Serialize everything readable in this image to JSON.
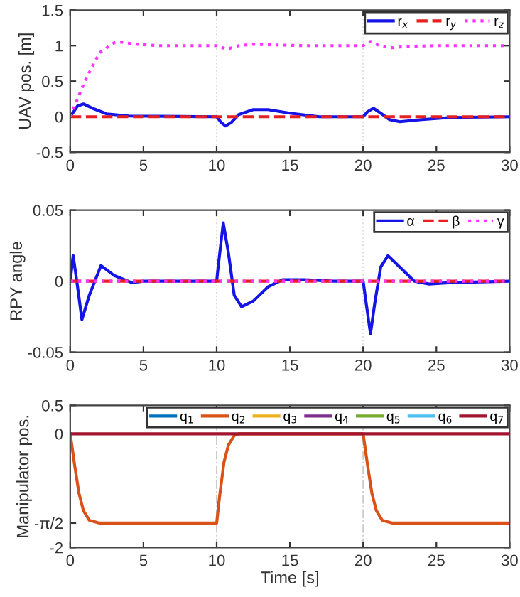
{
  "chart_data": [
    {
      "type": "line",
      "ylabel": "UAV pos. [m]",
      "xlim": [
        0,
        30
      ],
      "xticks": [
        0,
        5,
        10,
        15,
        20,
        25,
        30
      ],
      "ylim": [
        -0.5,
        1.5
      ],
      "yticks": [
        -0.5,
        0,
        0.5,
        1,
        1.5
      ],
      "legend": "top right",
      "grid": false,
      "ref_lines": [
        {
          "axis": "x",
          "value": 10,
          "color": "#d9d9d9",
          "line_style": "dotted"
        },
        {
          "axis": "x",
          "value": 20,
          "color": "#d9d9d9",
          "line_style": "dotted"
        }
      ],
      "series": [
        {
          "name": "r$_{x}$",
          "color": "#1414e6",
          "line_style": "solid",
          "x": [
            0,
            0.5,
            0.9,
            1.5,
            2.5,
            4,
            10,
            10.3,
            10.6,
            11,
            11.5,
            12.5,
            13.5,
            15,
            17,
            20,
            20.3,
            20.7,
            21.2,
            21.8,
            22.5,
            24,
            26,
            30
          ],
          "values": [
            0,
            0.15,
            0.18,
            0.12,
            0.04,
            0.01,
            0,
            -0.08,
            -0.13,
            -0.08,
            0.03,
            0.1,
            0.1,
            0.05,
            0,
            0,
            0.07,
            0.12,
            0.05,
            -0.04,
            -0.07,
            -0.04,
            -0.01,
            0
          ]
        },
        {
          "name": "r$_{y}$",
          "color": "#e62020",
          "line_style": "dashed",
          "x": [
            0,
            30
          ],
          "values": [
            0,
            0
          ]
        },
        {
          "name": "r$_{z}$",
          "color": "#ff33ff",
          "line_style": "dotted",
          "x": [
            0,
            1,
            2,
            3,
            3.5,
            4.5,
            6,
            10,
            10.7,
            11.5,
            12.5,
            14,
            16,
            20,
            20.5,
            21,
            22,
            23,
            25,
            30
          ],
          "values": [
            0,
            0.5,
            0.9,
            1.04,
            1.05,
            1.02,
            1.0,
            1.0,
            0.95,
            1.0,
            1.02,
            1.01,
            1.0,
            1.0,
            1.06,
            1.01,
            0.97,
            0.99,
            1.0,
            1.0
          ]
        }
      ]
    },
    {
      "type": "line",
      "ylabel": "RPY angle",
      "xlim": [
        0,
        30
      ],
      "xticks": [
        0,
        5,
        10,
        15,
        20,
        25,
        30
      ],
      "ylim": [
        -0.05,
        0.05
      ],
      "yticks": [
        -0.05,
        0,
        0.05
      ],
      "legend": "top right",
      "grid": false,
      "ref_lines": [
        {
          "axis": "x",
          "value": 10,
          "color": "#d9d9d9",
          "line_style": "dotted"
        },
        {
          "axis": "x",
          "value": 20,
          "color": "#d9d9d9",
          "line_style": "dotted"
        }
      ],
      "series": [
        {
          "name": "α",
          "color": "#1414e6",
          "line_style": "solid",
          "x": [
            0,
            0.2,
            0.45,
            0.8,
            1.3,
            2.1,
            3,
            4.2,
            5,
            10,
            10.1,
            10.45,
            10.8,
            11.2,
            11.7,
            12.5,
            13.5,
            14.5,
            16,
            18,
            20,
            20.2,
            20.5,
            20.8,
            21.2,
            21.7,
            22.5,
            23.5,
            24.5,
            26,
            30
          ],
          "values": [
            0,
            0.018,
            0,
            -0.027,
            -0.01,
            0.011,
            0.004,
            -0.001,
            0,
            0,
            0.01,
            0.041,
            0.02,
            -0.01,
            -0.018,
            -0.014,
            -0.004,
            0.001,
            0.001,
            0,
            0,
            -0.015,
            -0.037,
            -0.015,
            0.01,
            0.018,
            0.01,
            0,
            -0.002,
            -0.001,
            0
          ]
        },
        {
          "name": "β",
          "color": "#e62020",
          "line_style": "dashed",
          "x": [
            0,
            30
          ],
          "values": [
            0,
            0
          ]
        },
        {
          "name": "γ",
          "color": "#ff33ff",
          "line_style": "dotted",
          "x": [
            0,
            30
          ],
          "values": [
            0,
            0
          ]
        }
      ]
    },
    {
      "type": "line",
      "xlabel": "Time [s]",
      "ylabel": "Manipulator pos.",
      "xlim": [
        0,
        30
      ],
      "xticks": [
        0,
        5,
        10,
        15,
        20,
        25,
        30
      ],
      "ylim": [
        -2,
        0.5
      ],
      "yticks": [
        -2,
        {
          "value": -1.5708,
          "label": "-π/2"
        },
        0,
        0.5
      ],
      "legend": "top right",
      "grid": false,
      "ref_lines": [
        {
          "axis": "x",
          "value": 10,
          "color": "#cccccc",
          "line_style": "dashdot"
        },
        {
          "axis": "x",
          "value": 20,
          "color": "#cccccc",
          "line_style": "dashdot"
        }
      ],
      "series": [
        {
          "name": "q$_{1}$",
          "color": "#0072bd",
          "line_style": "solid"
        },
        {
          "name": "q$_{2}$",
          "color": "#d95319",
          "line_style": "solid",
          "x": [
            0,
            0.3,
            0.6,
            0.9,
            1.3,
            2,
            10,
            10.2,
            10.5,
            10.8,
            11.2,
            11.5,
            20,
            20.3,
            20.6,
            20.9,
            21.3,
            22,
            30
          ],
          "values": [
            0,
            -0.55,
            -1.05,
            -1.35,
            -1.52,
            -1.57,
            -1.57,
            -1.1,
            -0.5,
            -0.2,
            -0.03,
            0,
            0,
            -0.55,
            -1.05,
            -1.35,
            -1.52,
            -1.57,
            -1.57
          ]
        },
        {
          "name": "q$_{3}$",
          "color": "#edb120",
          "line_style": "solid"
        },
        {
          "name": "q$_{4}$",
          "color": "#7e2f8e",
          "line_style": "solid"
        },
        {
          "name": "q$_{5}$",
          "color": "#77ac30",
          "line_style": "solid"
        },
        {
          "name": "q$_{6}$",
          "color": "#4dbeee",
          "line_style": "solid"
        },
        {
          "name": "q$_{7}$",
          "color": "#a2142f",
          "line_style": "solid",
          "x": [
            0,
            30
          ],
          "values": [
            0,
            0
          ]
        }
      ]
    }
  ]
}
